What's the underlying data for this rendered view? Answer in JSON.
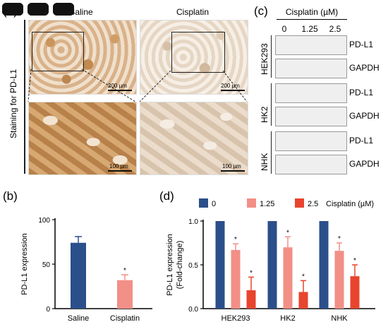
{
  "panel_a": {
    "letter": "(a)",
    "col_headers": [
      "Saline",
      "Cisplatin"
    ],
    "side_label": "Staining for PD-L1",
    "scale_top": "200 µm",
    "scale_bottom": "100 µm"
  },
  "panel_c": {
    "letter": "(c)",
    "header": "Cisplatin (µM)",
    "doses": [
      "0",
      "1.25",
      "2.5"
    ],
    "groups": [
      {
        "cell": "HEK293",
        "bands": [
          "PD-L1",
          "GAPDH"
        ],
        "pdl1_relative": [
          1.0,
          0.66,
          0.22
        ]
      },
      {
        "cell": "HK2",
        "bands": [
          "PD-L1",
          "GAPDH"
        ],
        "pdl1_relative": [
          1.0,
          0.68,
          0.24
        ]
      },
      {
        "cell": "NHK",
        "bands": [
          "PD-L1",
          "GAPDH"
        ],
        "pdl1_relative": [
          1.0,
          0.7,
          0.42
        ]
      }
    ]
  },
  "chart_data": [
    {
      "panel": "(b)",
      "type": "bar",
      "categories": [
        "Saline",
        "Cisplatin"
      ],
      "values": [
        74,
        32
      ],
      "errors": [
        7,
        6
      ],
      "significance": [
        "",
        "*"
      ],
      "colors": [
        "#2b4f8a",
        "#f28f86"
      ],
      "ylabel": "PD-L1 expression",
      "ylim": [
        0,
        100
      ],
      "yticks": [
        "0",
        "50",
        "100"
      ]
    },
    {
      "panel": "(d)",
      "type": "bar",
      "categories": [
        "HEK293",
        "HK2",
        "NHK"
      ],
      "series": [
        {
          "name": "0",
          "color": "#2b4f8a",
          "values": [
            1.0,
            1.0,
            1.0
          ],
          "errors": [
            0,
            0,
            0
          ],
          "significance": [
            "",
            "",
            ""
          ]
        },
        {
          "name": "1.25",
          "color": "#f28f86",
          "values": [
            0.67,
            0.7,
            0.66
          ],
          "errors": [
            0.07,
            0.12,
            0.09
          ],
          "significance": [
            "*",
            "*",
            "*"
          ]
        },
        {
          "name": "2.5",
          "color": "#e8442e",
          "values": [
            0.21,
            0.19,
            0.37
          ],
          "errors": [
            0.15,
            0.13,
            0.13
          ],
          "significance": [
            "*",
            "*",
            "*"
          ]
        }
      ],
      "legend_suffix": "Cisplatin (µM)",
      "ylabel": "PD-L1 expression",
      "ylabel2": "(Fold-change)",
      "ylim": [
        0,
        1.0
      ],
      "yticks": [
        "0.0",
        "0.5",
        "1.0"
      ]
    }
  ]
}
